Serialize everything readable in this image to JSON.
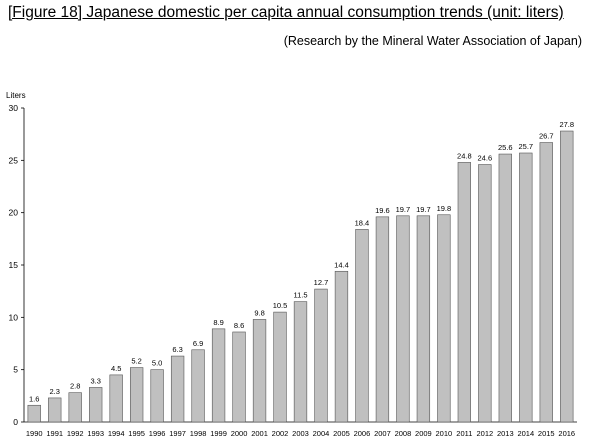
{
  "title": "[Figure 18] Japanese domestic per capita annual consumption trends (unit: liters)",
  "source": "(Research by the Mineral Water Association of Japan)",
  "chart_data": {
    "type": "bar",
    "ylabel": "Liters",
    "xlabel": "",
    "ylim": [
      0,
      30
    ],
    "yticks": [
      0,
      5,
      10,
      15,
      20,
      25,
      30
    ],
    "grid": false,
    "bar_color": "#c0c0c0",
    "bar_edge_color": "#555555",
    "categories": [
      "1990",
      "1991",
      "1992",
      "1993",
      "1994",
      "1995",
      "1996",
      "1997",
      "1998",
      "1999",
      "2000",
      "2001",
      "2002",
      "2003",
      "2004",
      "2005",
      "2006",
      "2007",
      "2008",
      "2009",
      "2010",
      "2011",
      "2012",
      "2013",
      "2014",
      "2015",
      "2016"
    ],
    "values": [
      1.6,
      2.3,
      2.8,
      3.3,
      4.5,
      5.2,
      5.0,
      6.3,
      6.9,
      8.9,
      8.6,
      9.8,
      10.5,
      11.5,
      12.7,
      14.4,
      18.4,
      19.6,
      19.7,
      19.7,
      19.8,
      24.8,
      24.6,
      25.6,
      25.7,
      26.7,
      27.8
    ],
    "value_labels": [
      "1.6",
      "2.3",
      "2.8",
      "3.3",
      "4.5",
      "5.2",
      "5.0",
      "6.3",
      "6.9",
      "8.9",
      "8.6",
      "9.8",
      "10.5",
      "11.5",
      "12.7",
      "14.4",
      "18.4",
      "19.6",
      "19.7",
      "19.7",
      "19.8",
      "24.8",
      "24.6",
      "25.6",
      "25.7",
      "26.7",
      "27.8"
    ]
  }
}
